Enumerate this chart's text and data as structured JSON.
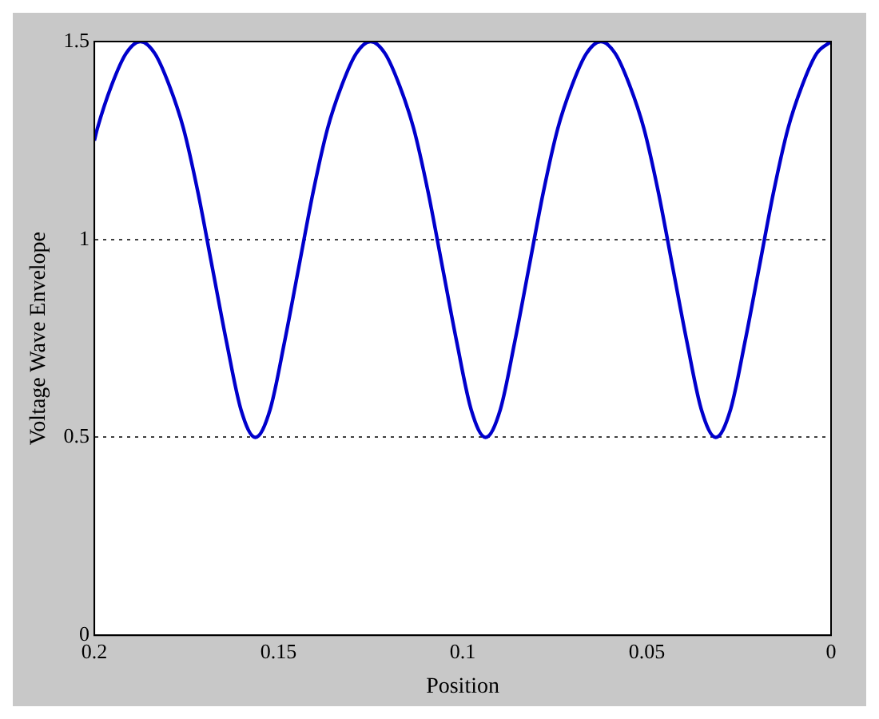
{
  "chart_data": {
    "type": "line",
    "xlabel": "Position",
    "ylabel": "Voltage Wave Envelope",
    "xlim": [
      0.2,
      0
    ],
    "xticks": [
      0.2,
      0.15,
      0.1,
      0.05,
      0
    ],
    "ylim": [
      0,
      1.5
    ],
    "yticks": [
      0,
      0.5,
      1,
      1.5
    ],
    "grid": "y",
    "line_style": "solid",
    "marker": "none",
    "legend": false,
    "series": [
      {
        "color": "#0000cc",
        "x": [
          0,
          0.0039,
          0.0078,
          0.0117,
          0.0156,
          0.0195,
          0.0234,
          0.0273,
          0.0313,
          0.0352,
          0.0391,
          0.043,
          0.0469,
          0.0508,
          0.0547,
          0.0586,
          0.0625,
          0.0664,
          0.0703,
          0.0742,
          0.0781,
          0.082,
          0.0859,
          0.0898,
          0.0938,
          0.0977,
          0.1016,
          0.1055,
          0.1094,
          0.1133,
          0.1172,
          0.1211,
          0.125,
          0.1289,
          0.1328,
          0.1367,
          0.1406,
          0.1445,
          0.1484,
          0.1523,
          0.1563,
          0.1602,
          0.1641,
          0.168,
          0.1719,
          0.1758,
          0.1797,
          0.1836,
          0.1875,
          0.1914,
          0.1953,
          0.1992,
          0.2
        ],
        "values": [
          1.5,
          1.47,
          1.39,
          1.28,
          1.12,
          0.93,
          0.74,
          0.57,
          0.5,
          0.57,
          0.74,
          0.93,
          1.12,
          1.28,
          1.39,
          1.47,
          1.5,
          1.47,
          1.39,
          1.28,
          1.12,
          0.93,
          0.74,
          0.57,
          0.5,
          0.57,
          0.74,
          0.93,
          1.12,
          1.28,
          1.39,
          1.47,
          1.5,
          1.47,
          1.39,
          1.28,
          1.12,
          0.93,
          0.74,
          0.57,
          0.5,
          0.57,
          0.74,
          0.93,
          1.12,
          1.28,
          1.39,
          1.47,
          1.5,
          1.47,
          1.39,
          1.28,
          1.25
        ]
      }
    ]
  }
}
